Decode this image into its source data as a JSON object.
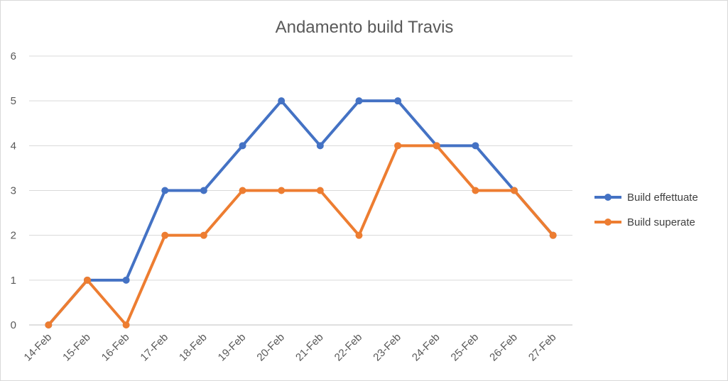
{
  "chart_data": {
    "type": "line",
    "title": "Andamento build Travis",
    "xlabel": "",
    "ylabel": "",
    "categories": [
      "14-Feb",
      "15-Feb",
      "16-Feb",
      "17-Feb",
      "18-Feb",
      "19-Feb",
      "20-Feb",
      "21-Feb",
      "22-Feb",
      "23-Feb",
      "24-Feb",
      "25-Feb",
      "26-Feb",
      "27-Feb"
    ],
    "ylim": [
      0,
      6
    ],
    "yticks": [
      "0",
      "1",
      "2",
      "3",
      "4",
      "5",
      "6"
    ],
    "grid": true,
    "legend_position": "right",
    "series": [
      {
        "name": "Build effettuate",
        "color": "#4472c4",
        "values": [
          0,
          1,
          1,
          3,
          3,
          4,
          5,
          4,
          5,
          5,
          4,
          4,
          3,
          2
        ]
      },
      {
        "name": "Build superate",
        "color": "#ed7d31",
        "values": [
          0,
          1,
          0,
          2,
          2,
          3,
          3,
          3,
          2,
          4,
          4,
          3,
          3,
          2
        ]
      }
    ]
  }
}
